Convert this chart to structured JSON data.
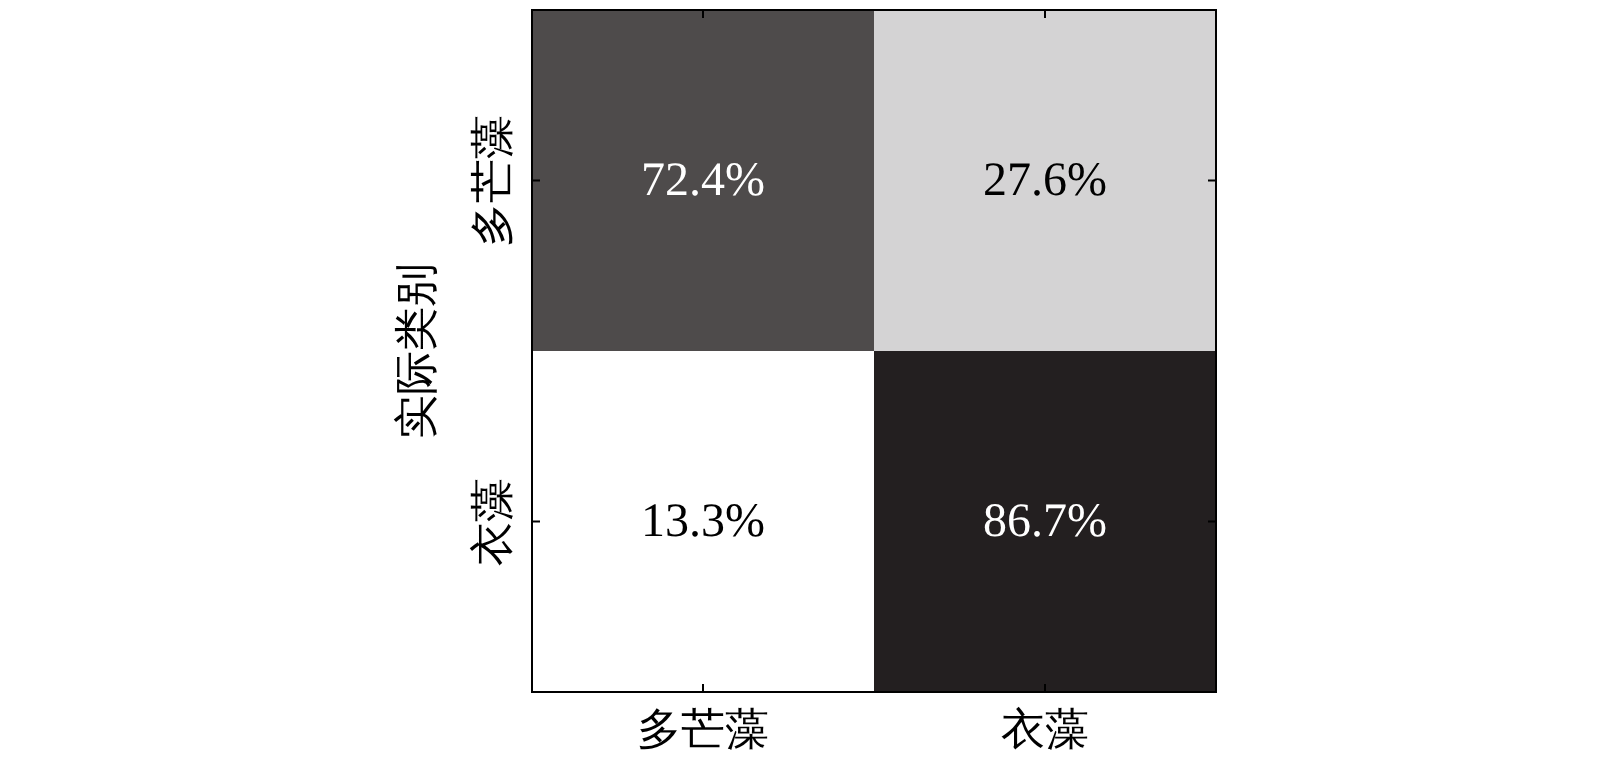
{
  "chart_data": {
    "type": "heatmap",
    "ylabel": "实际类别",
    "categories": [
      "多芒藻",
      "衣藻"
    ],
    "y_categories": [
      "多芒藻",
      "衣藻"
    ],
    "cells": [
      [
        72.4,
        27.6
      ],
      [
        13.3,
        86.7
      ]
    ],
    "cell_labels": [
      [
        "72.4%",
        "27.6%"
      ],
      [
        "13.3%",
        "86.7%"
      ]
    ]
  }
}
